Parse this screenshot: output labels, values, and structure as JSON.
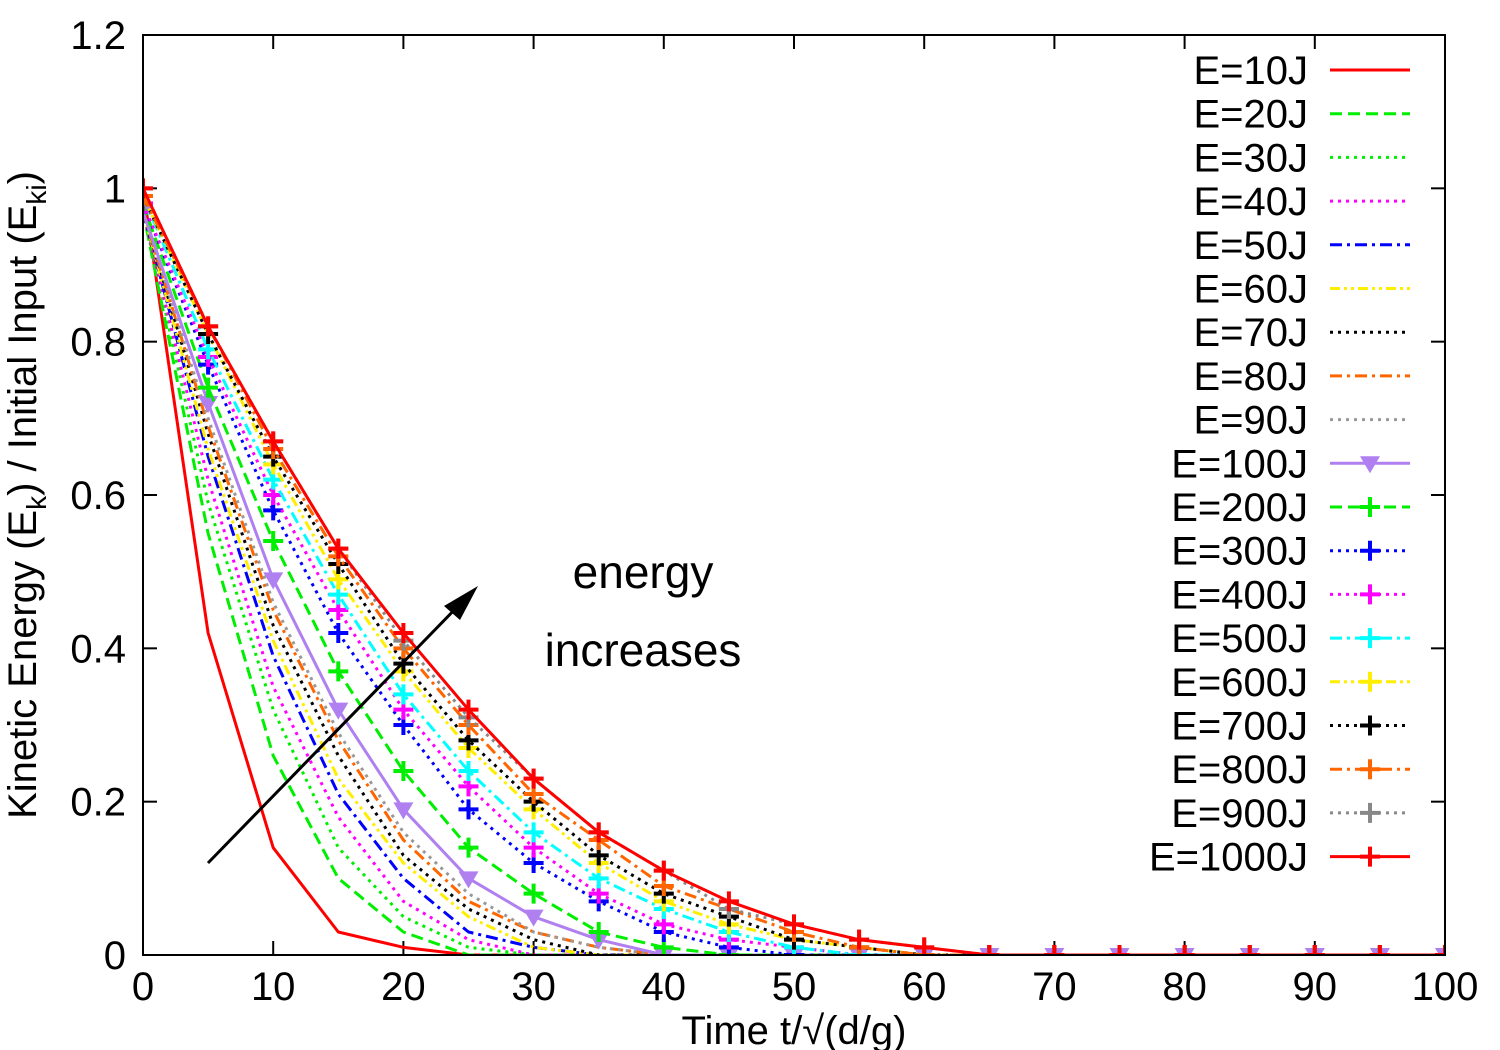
{
  "chart_data": {
    "type": "line",
    "xlabel": "Time t/√(d/g)",
    "ylabel": [
      "Kinetic Energy (E",
      "k",
      ") / Initial Input (E",
      "ki",
      ")"
    ],
    "annotation": [
      "energy",
      "increases"
    ],
    "xlim": [
      0,
      100
    ],
    "ylim": [
      0,
      1.2
    ],
    "xticks": [
      0,
      10,
      20,
      30,
      40,
      50,
      60,
      70,
      80,
      90,
      100
    ],
    "yticks": [
      0,
      0.2,
      0.4,
      0.6,
      0.8,
      1,
      1.2
    ],
    "legend": "upper right",
    "x": [
      0,
      5,
      10,
      15,
      20,
      25,
      30,
      35,
      40,
      45,
      50,
      55,
      60,
      65,
      70,
      75,
      80,
      85,
      90,
      95,
      100
    ],
    "series": [
      {
        "name": "E=10J",
        "color": "#ff0000",
        "line_style": "solid",
        "marker": "none",
        "values": [
          1,
          0.42,
          0.14,
          0.03,
          0.01,
          0,
          0,
          0,
          0,
          0,
          0,
          0,
          0,
          0,
          0,
          0,
          0,
          0,
          0,
          0,
          0
        ]
      },
      {
        "name": "E=20J",
        "color": "#00ee00",
        "line_style": "dashed",
        "marker": "none",
        "values": [
          0.97,
          0.55,
          0.26,
          0.1,
          0.03,
          0,
          0,
          0,
          0,
          0,
          0,
          0,
          0,
          0,
          0,
          0,
          0,
          0,
          0,
          0,
          0
        ]
      },
      {
        "name": "E=30J",
        "color": "#00ee00",
        "line_style": "dotted",
        "marker": "none",
        "values": [
          0.97,
          0.59,
          0.32,
          0.14,
          0.05,
          0.01,
          0,
          0,
          0,
          0,
          0,
          0,
          0,
          0,
          0,
          0,
          0,
          0,
          0,
          0,
          0
        ]
      },
      {
        "name": "E=40J",
        "color": "#ff00ff",
        "line_style": "dotted",
        "marker": "none",
        "values": [
          0.97,
          0.62,
          0.35,
          0.18,
          0.07,
          0.02,
          0,
          0,
          0,
          0,
          0,
          0,
          0,
          0,
          0,
          0,
          0,
          0,
          0,
          0,
          0
        ]
      },
      {
        "name": "E=50J",
        "color": "#0000ff",
        "line_style": "dashdot",
        "marker": "none",
        "values": [
          0.97,
          0.65,
          0.39,
          0.21,
          0.1,
          0.03,
          0.01,
          0,
          0,
          0,
          0,
          0,
          0,
          0,
          0,
          0,
          0,
          0,
          0,
          0,
          0
        ]
      },
      {
        "name": "E=60J",
        "color": "#ffee00",
        "line_style": "dashdotdot",
        "marker": "none",
        "values": [
          0.97,
          0.66,
          0.41,
          0.23,
          0.12,
          0.05,
          0.01,
          0,
          0,
          0,
          0,
          0,
          0,
          0,
          0,
          0,
          0,
          0,
          0,
          0,
          0
        ]
      },
      {
        "name": "E=70J",
        "color": "#000000",
        "line_style": "dotted",
        "marker": "none",
        "values": [
          0.97,
          0.68,
          0.43,
          0.26,
          0.13,
          0.06,
          0.02,
          0,
          0,
          0,
          0,
          0,
          0,
          0,
          0,
          0,
          0,
          0,
          0,
          0,
          0
        ]
      },
      {
        "name": "E=80J",
        "color": "#ff6600",
        "line_style": "dashdot",
        "marker": "none",
        "values": [
          0.97,
          0.69,
          0.45,
          0.28,
          0.15,
          0.07,
          0.03,
          0.01,
          0,
          0,
          0,
          0,
          0,
          0,
          0,
          0,
          0,
          0,
          0,
          0,
          0
        ]
      },
      {
        "name": "E=90J",
        "color": "#999999",
        "line_style": "dotted",
        "marker": "none",
        "values": [
          0.97,
          0.7,
          0.46,
          0.29,
          0.16,
          0.08,
          0.03,
          0.01,
          0,
          0,
          0,
          0,
          0,
          0,
          0,
          0,
          0,
          0,
          0,
          0,
          0
        ]
      },
      {
        "name": "E=100J",
        "color": "#b080f0",
        "line_style": "solid",
        "marker": "triangle",
        "values": [
          0.97,
          0.72,
          0.49,
          0.32,
          0.19,
          0.1,
          0.05,
          0.02,
          0,
          0,
          0,
          0,
          0,
          0,
          0,
          0,
          0,
          0,
          0,
          0,
          0
        ]
      },
      {
        "name": "E=200J",
        "color": "#00ee00",
        "line_style": "dashed",
        "marker": "plus",
        "values": [
          0.98,
          0.74,
          0.54,
          0.37,
          0.24,
          0.14,
          0.08,
          0.03,
          0.01,
          0,
          0,
          0,
          0,
          0,
          0,
          0,
          0,
          0,
          0,
          0,
          0
        ]
      },
      {
        "name": "E=300J",
        "color": "#0000ff",
        "line_style": "dotted",
        "marker": "plus",
        "values": [
          0.98,
          0.77,
          0.58,
          0.42,
          0.3,
          0.19,
          0.12,
          0.07,
          0.03,
          0.01,
          0,
          0,
          0,
          0,
          0,
          0,
          0,
          0,
          0,
          0,
          0
        ]
      },
      {
        "name": "E=400J",
        "color": "#ff00ff",
        "line_style": "dotted",
        "marker": "plus",
        "values": [
          0.98,
          0.78,
          0.6,
          0.45,
          0.32,
          0.22,
          0.14,
          0.08,
          0.04,
          0.02,
          0.01,
          0,
          0,
          0,
          0,
          0,
          0,
          0,
          0,
          0,
          0
        ]
      },
      {
        "name": "E=500J",
        "color": "#00ffff",
        "line_style": "dashdot",
        "marker": "plus",
        "values": [
          0.99,
          0.79,
          0.62,
          0.47,
          0.34,
          0.24,
          0.16,
          0.1,
          0.06,
          0.03,
          0.01,
          0,
          0,
          0,
          0,
          0,
          0,
          0,
          0,
          0,
          0
        ]
      },
      {
        "name": "E=600J",
        "color": "#ffee00",
        "line_style": "dashdotdot",
        "marker": "plus",
        "values": [
          0.99,
          0.81,
          0.64,
          0.49,
          0.37,
          0.27,
          0.19,
          0.12,
          0.07,
          0.04,
          0.02,
          0.01,
          0,
          0,
          0,
          0,
          0,
          0,
          0,
          0,
          0
        ]
      },
      {
        "name": "E=700J",
        "color": "#000000",
        "line_style": "dotted",
        "marker": "plus",
        "values": [
          0.99,
          0.81,
          0.65,
          0.51,
          0.38,
          0.28,
          0.2,
          0.13,
          0.08,
          0.05,
          0.02,
          0.01,
          0,
          0,
          0,
          0,
          0,
          0,
          0,
          0,
          0
        ]
      },
      {
        "name": "E=800J",
        "color": "#ff6600",
        "line_style": "dashdot",
        "marker": "plus",
        "values": [
          0.99,
          0.82,
          0.66,
          0.52,
          0.4,
          0.3,
          0.21,
          0.15,
          0.09,
          0.06,
          0.03,
          0.01,
          0,
          0,
          0,
          0,
          0,
          0,
          0,
          0,
          0
        ]
      },
      {
        "name": "E=900J",
        "color": "#888888",
        "line_style": "dotted",
        "marker": "plus",
        "values": [
          1,
          0.82,
          0.67,
          0.53,
          0.41,
          0.31,
          0.23,
          0.16,
          0.11,
          0.06,
          0.04,
          0.02,
          0.01,
          0,
          0,
          0,
          0,
          0,
          0,
          0,
          0
        ]
      },
      {
        "name": "E=1000J",
        "color": "#ff0000",
        "line_style": "solid",
        "marker": "plus",
        "values": [
          1,
          0.82,
          0.67,
          0.53,
          0.42,
          0.32,
          0.23,
          0.16,
          0.11,
          0.07,
          0.04,
          0.02,
          0.01,
          0,
          0,
          0,
          0,
          0,
          0,
          0,
          0
        ]
      }
    ]
  }
}
